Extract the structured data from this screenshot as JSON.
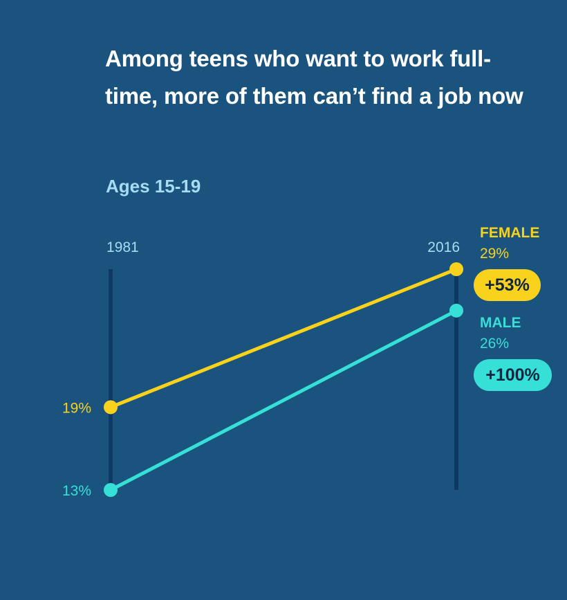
{
  "title": "Among teens who want to work full-time, more of them can’t find a job now",
  "subtitle": "Ages 15-19",
  "chart_data": {
    "type": "line",
    "x": [
      "1981",
      "2016"
    ],
    "series": [
      {
        "name": "FEMALE",
        "values": [
          19,
          29
        ],
        "start_label": "19%",
        "end_label": "29%",
        "change_label": "+53%",
        "color": "#f9d21e"
      },
      {
        "name": "MALE",
        "values": [
          13,
          26
        ],
        "start_label": "13%",
        "end_label": "26%",
        "change_label": "+100%",
        "color": "#37e0d6"
      }
    ],
    "axis_color": "#0d3a64",
    "tick_label_color": "#a8dcf2"
  }
}
